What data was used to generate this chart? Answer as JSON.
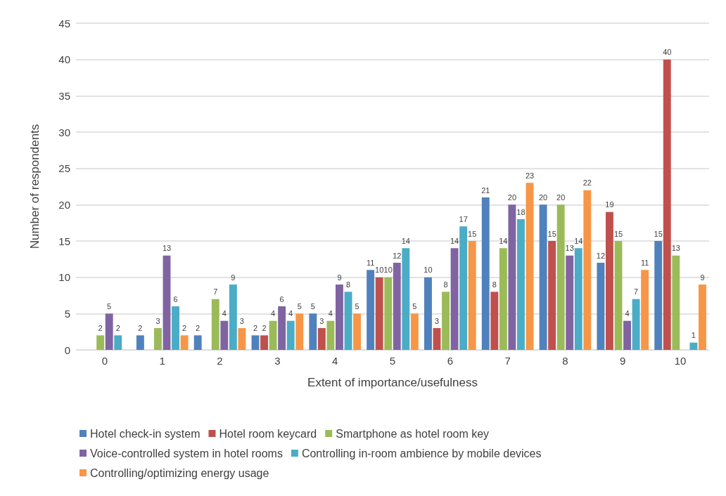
{
  "chart_data": {
    "type": "bar",
    "xlabel": "Extent of importance/usefulness",
    "ylabel": "Number of respondents",
    "categories": [
      "0",
      "1",
      "2",
      "3",
      "4",
      "5",
      "6",
      "7",
      "8",
      "9",
      "10"
    ],
    "series": [
      {
        "name": "Hotel check-in system",
        "color": "#4f81bd",
        "values": [
          0,
          2,
          2,
          2,
          5,
          11,
          10,
          21,
          20,
          12,
          15
        ],
        "value_labels": [
          null,
          "2",
          "2",
          "2",
          "5",
          "11",
          "10",
          "21",
          "20",
          "12",
          "15"
        ]
      },
      {
        "name": "Hotel room keycard",
        "color": "#c0504d",
        "values": [
          0,
          0,
          0,
          2,
          3,
          10,
          3,
          8,
          15,
          19,
          40
        ],
        "value_labels": [
          null,
          null,
          null,
          "2",
          "3",
          "10",
          "3",
          "8",
          "15",
          "19",
          "40"
        ]
      },
      {
        "name": "Smartphone as hotel room key",
        "color": "#9bbb59",
        "values": [
          2,
          3,
          7,
          4,
          4,
          10,
          8,
          14,
          20,
          15,
          13
        ],
        "value_labels": [
          "2",
          "3",
          "7",
          "4",
          "4",
          "10",
          "8",
          "14",
          "20",
          "15",
          "13"
        ]
      },
      {
        "name": "Voice-controlled system in hotel rooms",
        "color": "#8064a2",
        "values": [
          5,
          13,
          4,
          6,
          9,
          12,
          14,
          20,
          13,
          4,
          0
        ],
        "value_labels": [
          "5",
          "13",
          "4",
          "6",
          "9",
          "12",
          "14",
          "20",
          "13",
          "4",
          null
        ]
      },
      {
        "name": "Controlling in-room ambience by mobile devices",
        "color": "#4bacc6",
        "values": [
          2,
          6,
          9,
          4,
          8,
          14,
          17,
          18,
          14,
          7,
          1
        ],
        "value_labels": [
          "2",
          "6",
          "9",
          "4",
          "8",
          "14",
          "17",
          "18",
          "14",
          "7",
          "1"
        ]
      },
      {
        "name": "Controlling/optimizing energy usage",
        "color": "#f79646",
        "values": [
          0,
          2,
          3,
          5,
          5,
          5,
          15,
          23,
          22,
          11,
          9
        ],
        "value_labels": [
          null,
          "2",
          "3",
          "5",
          "5",
          "5",
          "15",
          "23",
          "22",
          "11",
          "9"
        ]
      }
    ],
    "ylim": [
      0,
      45
    ],
    "yticks": [
      0,
      5,
      10,
      15,
      20,
      25,
      30,
      35,
      40,
      45
    ],
    "grid": "y",
    "legend": "bottom"
  }
}
